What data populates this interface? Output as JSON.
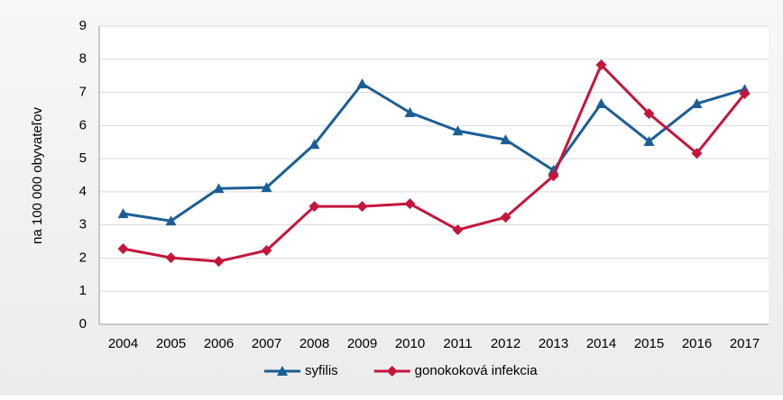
{
  "chart_data": {
    "type": "line",
    "y_label": "na 100 000 obyvateľov",
    "categories": [
      "2004",
      "2005",
      "2006",
      "2007",
      "2008",
      "2009",
      "2010",
      "2011",
      "2012",
      "2013",
      "2014",
      "2015",
      "2016",
      "2017"
    ],
    "series": [
      {
        "name": "syfilis",
        "color": "#1b5e96",
        "marker": "triangle",
        "values": [
          3.34,
          3.12,
          4.1,
          4.13,
          5.43,
          7.26,
          6.39,
          5.84,
          5.57,
          4.65,
          6.66,
          5.52,
          6.66,
          7.09
        ]
      },
      {
        "name": "gonokoková infekcia",
        "color": "#c4163c",
        "marker": "diamond",
        "values": [
          2.28,
          2.01,
          1.9,
          2.23,
          3.56,
          3.56,
          3.64,
          2.85,
          3.23,
          4.48,
          7.83,
          6.36,
          5.16,
          6.96
        ]
      }
    ],
    "ylim": [
      0,
      9
    ],
    "yticks": [
      0,
      1,
      2,
      3,
      4,
      5,
      6,
      7,
      8,
      9
    ],
    "grid": true,
    "legend": "bottom"
  }
}
